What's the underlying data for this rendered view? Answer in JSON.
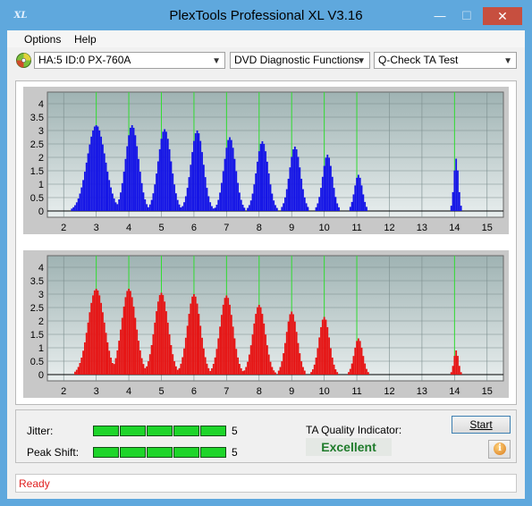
{
  "window": {
    "title": "PlexTools Professional XL V3.16",
    "app_icon_text": "XL",
    "minimize_glyph": "—",
    "maximize_glyph": "☐",
    "close_glyph": "✕"
  },
  "menu": {
    "items": [
      "Options",
      "Help"
    ]
  },
  "toolbar": {
    "drive": "HA:5 ID:0  PX-760A",
    "function": "DVD Diagnostic Functions",
    "test": "Q-Check TA Test"
  },
  "colors": {
    "top_bars": "#1414e6",
    "bottom_bars": "#e61414",
    "markers": "#33dd33",
    "plot_bg_top": "#9fb3b3",
    "plot_bg_bottom": "#e8eeee",
    "meter": "#1ed52a",
    "quality_text": "#1f7b2b",
    "status_text": "#e02020"
  },
  "chart_data": [
    {
      "type": "bar",
      "name": "top",
      "x_ticks": [
        2,
        3,
        4,
        5,
        6,
        7,
        8,
        9,
        10,
        11,
        12,
        13,
        14,
        15
      ],
      "y_ticks": [
        "4",
        "3.5",
        "3",
        "2.5",
        "2",
        "1.5",
        "1",
        "0.5",
        "0"
      ],
      "xlim": [
        1.5,
        15.5
      ],
      "ylim": [
        0,
        4.2
      ],
      "markers": [
        3,
        4,
        5,
        6,
        7,
        8,
        9,
        10,
        11,
        14
      ],
      "peaks": [
        {
          "center": 3.0,
          "height": 3.2,
          "spread": 0.28
        },
        {
          "center": 4.1,
          "height": 3.2,
          "spread": 0.2
        },
        {
          "center": 5.1,
          "height": 3.05,
          "spread": 0.2
        },
        {
          "center": 6.1,
          "height": 3.0,
          "spread": 0.19
        },
        {
          "center": 7.1,
          "height": 2.75,
          "spread": 0.18
        },
        {
          "center": 8.1,
          "height": 2.6,
          "spread": 0.18
        },
        {
          "center": 9.1,
          "height": 2.4,
          "spread": 0.17
        },
        {
          "center": 10.1,
          "height": 2.1,
          "spread": 0.15
        },
        {
          "center": 11.05,
          "height": 1.35,
          "spread": 0.12
        },
        {
          "center": 14.05,
          "height": 1.95,
          "spread": 0.07
        }
      ]
    },
    {
      "type": "bar",
      "name": "bottom",
      "x_ticks": [
        2,
        3,
        4,
        5,
        6,
        7,
        8,
        9,
        10,
        11,
        12,
        13,
        14,
        15
      ],
      "y_ticks": [
        "4",
        "3.5",
        "3",
        "2.5",
        "2",
        "1.5",
        "1",
        "0.5",
        "0"
      ],
      "xlim": [
        1.5,
        15.5
      ],
      "ylim": [
        0,
        4.2
      ],
      "markers": [
        3,
        4,
        5,
        6,
        7,
        8,
        9,
        10,
        11,
        14
      ],
      "peaks": [
        {
          "center": 3.0,
          "height": 3.2,
          "spread": 0.25
        },
        {
          "center": 4.0,
          "height": 3.2,
          "spread": 0.22
        },
        {
          "center": 5.0,
          "height": 3.05,
          "spread": 0.21
        },
        {
          "center": 6.0,
          "height": 3.0,
          "spread": 0.2
        },
        {
          "center": 7.0,
          "height": 2.95,
          "spread": 0.2
        },
        {
          "center": 8.0,
          "height": 2.6,
          "spread": 0.19
        },
        {
          "center": 9.0,
          "height": 2.35,
          "spread": 0.17
        },
        {
          "center": 10.0,
          "height": 2.15,
          "spread": 0.16
        },
        {
          "center": 11.05,
          "height": 1.35,
          "spread": 0.13
        },
        {
          "center": 14.05,
          "height": 0.9,
          "spread": 0.07
        }
      ]
    }
  ],
  "results": {
    "jitter_label": "Jitter:",
    "jitter_value": "5",
    "jitter_level": 5,
    "peak_shift_label": "Peak Shift:",
    "peak_shift_value": "5",
    "peak_shift_level": 5,
    "ta_label": "TA Quality Indicator:",
    "ta_result": "Excellent",
    "start_label": "Start",
    "info_glyph": "i"
  },
  "status": {
    "text": "Ready"
  }
}
